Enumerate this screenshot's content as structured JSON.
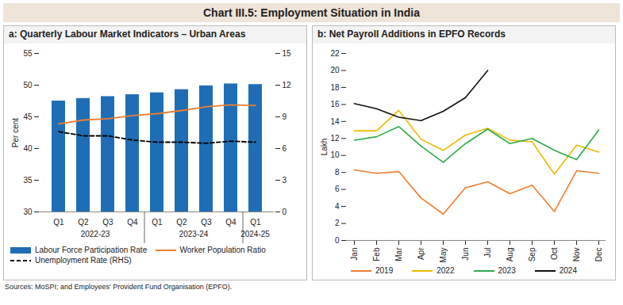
{
  "title": "Chart III.5: Employment Situation in India",
  "source": "Sources: MoSPI; and Employees' Provident Fund Organisation (EPFO).",
  "chart_data": [
    {
      "type": "bar",
      "title": "a: Quarterly Labour Market Indicators – Urban Areas",
      "categories": [
        "Q1",
        "Q2",
        "Q3",
        "Q4",
        "Q1",
        "Q2",
        "Q3",
        "Q4",
        "Q1"
      ],
      "x_groups": [
        {
          "label": "2022-23",
          "count": 4
        },
        {
          "label": "2023-24",
          "count": 4
        },
        {
          "label": "2024-25",
          "count": 1
        }
      ],
      "series": [
        {
          "name": "Labour Force Participation Rate",
          "type": "bar",
          "color": "#1f6eb5",
          "values": [
            47.5,
            47.9,
            48.2,
            48.5,
            48.8,
            49.3,
            49.9,
            50.2,
            50.1
          ]
        },
        {
          "name": "Worker Population Ratio",
          "type": "line",
          "color": "#ee7d31",
          "values": [
            43.9,
            44.5,
            44.7,
            45.2,
            45.5,
            46.0,
            46.6,
            46.9,
            46.8
          ]
        },
        {
          "name": "Unemployment Rate (RHS)",
          "type": "line",
          "color": "#000000",
          "line_style": "dashed",
          "axis": "y2",
          "values": [
            7.6,
            7.2,
            7.2,
            6.8,
            6.6,
            6.6,
            6.5,
            6.7,
            6.6
          ]
        }
      ],
      "y_label": "Per cent",
      "ylim": [
        30,
        55
      ],
      "yticks": [
        30,
        35,
        40,
        45,
        50,
        55
      ],
      "y2lim": [
        0,
        15
      ],
      "y2ticks": [
        0,
        3,
        6,
        9,
        12,
        15
      ],
      "grid": false,
      "legend": "bottom"
    },
    {
      "type": "line",
      "title": "b: Net Payroll Additions in EPFO Records",
      "categories": [
        "Jan",
        "Feb",
        "Mar",
        "Apr",
        "May",
        "Jun",
        "Jul",
        "Aug",
        "Sep",
        "Oct",
        "Nov",
        "Dec"
      ],
      "series": [
        {
          "name": "2019",
          "color": "#ee7d31",
          "values": [
            8.3,
            7.9,
            8.1,
            5.0,
            3.1,
            6.2,
            6.9,
            5.5,
            6.5,
            3.4,
            8.2,
            7.9
          ]
        },
        {
          "name": "2022",
          "color": "#f2b800",
          "values": [
            12.9,
            12.9,
            15.3,
            11.9,
            10.6,
            12.4,
            13.2,
            11.8,
            11.6,
            7.8,
            11.2,
            10.4
          ]
        },
        {
          "name": "2023",
          "color": "#2eaa4a",
          "values": [
            11.8,
            12.2,
            13.4,
            11.1,
            9.2,
            11.4,
            13.1,
            11.4,
            12.0,
            10.6,
            9.5,
            13.0
          ]
        },
        {
          "name": "2024",
          "color": "#111111",
          "values": [
            16.1,
            15.5,
            14.5,
            14.1,
            15.2,
            16.8,
            20.0,
            null,
            null,
            null,
            null,
            null
          ]
        }
      ],
      "y_label": "Lakh",
      "ylim": [
        0,
        22
      ],
      "yticks": [
        0,
        2,
        4,
        6,
        8,
        10,
        12,
        14,
        16,
        18,
        20,
        22
      ],
      "grid": false,
      "legend": "bottom"
    }
  ]
}
